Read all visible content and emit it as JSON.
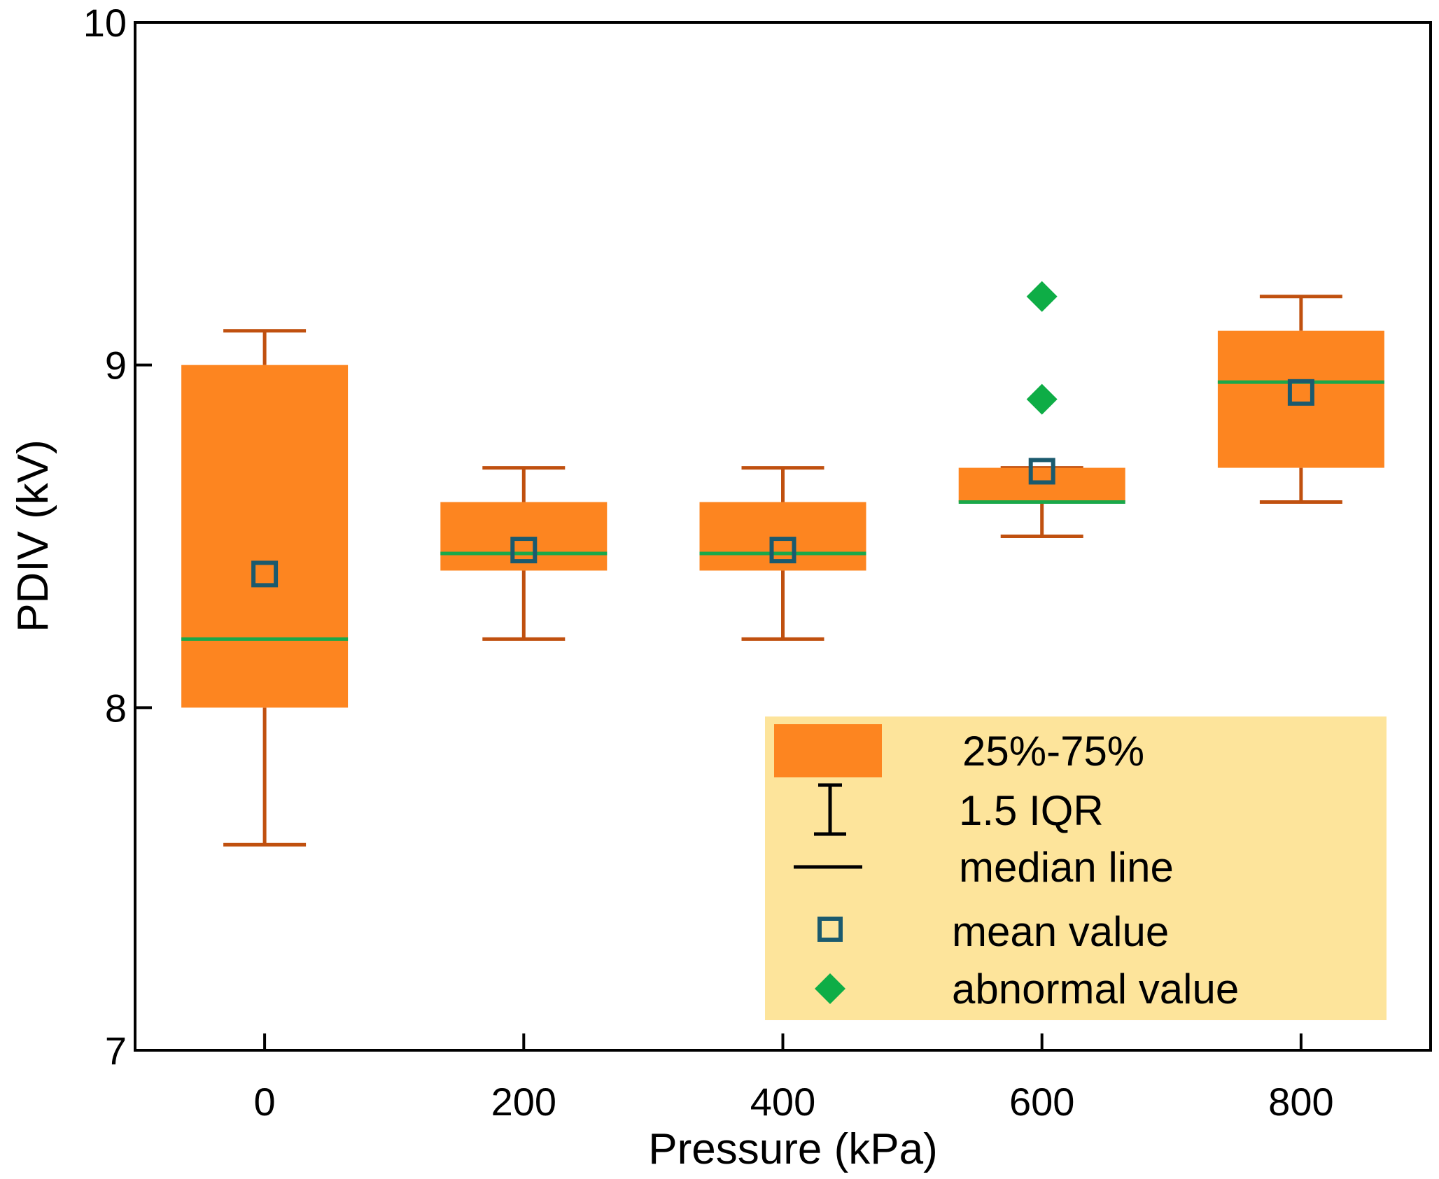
{
  "chart_data": {
    "type": "box",
    "xlabel": "Pressure (kPa)",
    "ylabel": "PDIV (kV)",
    "ylim": [
      7,
      10
    ],
    "xlim": [
      -100,
      900
    ],
    "yticks": [
      7,
      8,
      9,
      10
    ],
    "xticks": [
      0,
      200,
      400,
      600,
      800
    ],
    "grid": false,
    "legend_position": "bottom-right",
    "boxes": [
      {
        "x": 0,
        "whisker_low": 7.6,
        "q1": 8.0,
        "median": 8.2,
        "q3": 9.0,
        "whisker_high": 9.1,
        "mean": 8.39,
        "outliers": []
      },
      {
        "x": 200,
        "whisker_low": 8.2,
        "q1": 8.4,
        "median": 8.45,
        "q3": 8.6,
        "whisker_high": 8.7,
        "mean": 8.46,
        "outliers": []
      },
      {
        "x": 400,
        "whisker_low": 8.2,
        "q1": 8.4,
        "median": 8.45,
        "q3": 8.6,
        "whisker_high": 8.7,
        "mean": 8.46,
        "outliers": []
      },
      {
        "x": 600,
        "whisker_low": 8.5,
        "q1": 8.6,
        "median": 8.6,
        "q3": 8.7,
        "whisker_high": 8.7,
        "mean": 8.69,
        "outliers": [
          9.2,
          8.9
        ]
      },
      {
        "x": 800,
        "whisker_low": 8.6,
        "q1": 8.7,
        "median": 8.95,
        "q3": 9.1,
        "whisker_high": 9.2,
        "mean": 8.92,
        "outliers": []
      }
    ],
    "colors": {
      "box": "#fd8520",
      "whisker": "#c0500f",
      "median": "#1aa84a",
      "mean": "#1b5a6e",
      "outlier": "#0ead46",
      "legend_bg": "#fde49b"
    },
    "legend": [
      {
        "key": "box",
        "label": "25%-75%"
      },
      {
        "key": "whisker",
        "label": "1.5 IQR"
      },
      {
        "key": "median",
        "label": "median line"
      },
      {
        "key": "mean",
        "label": "mean value"
      },
      {
        "key": "outlier",
        "label": "abnormal value"
      }
    ]
  }
}
